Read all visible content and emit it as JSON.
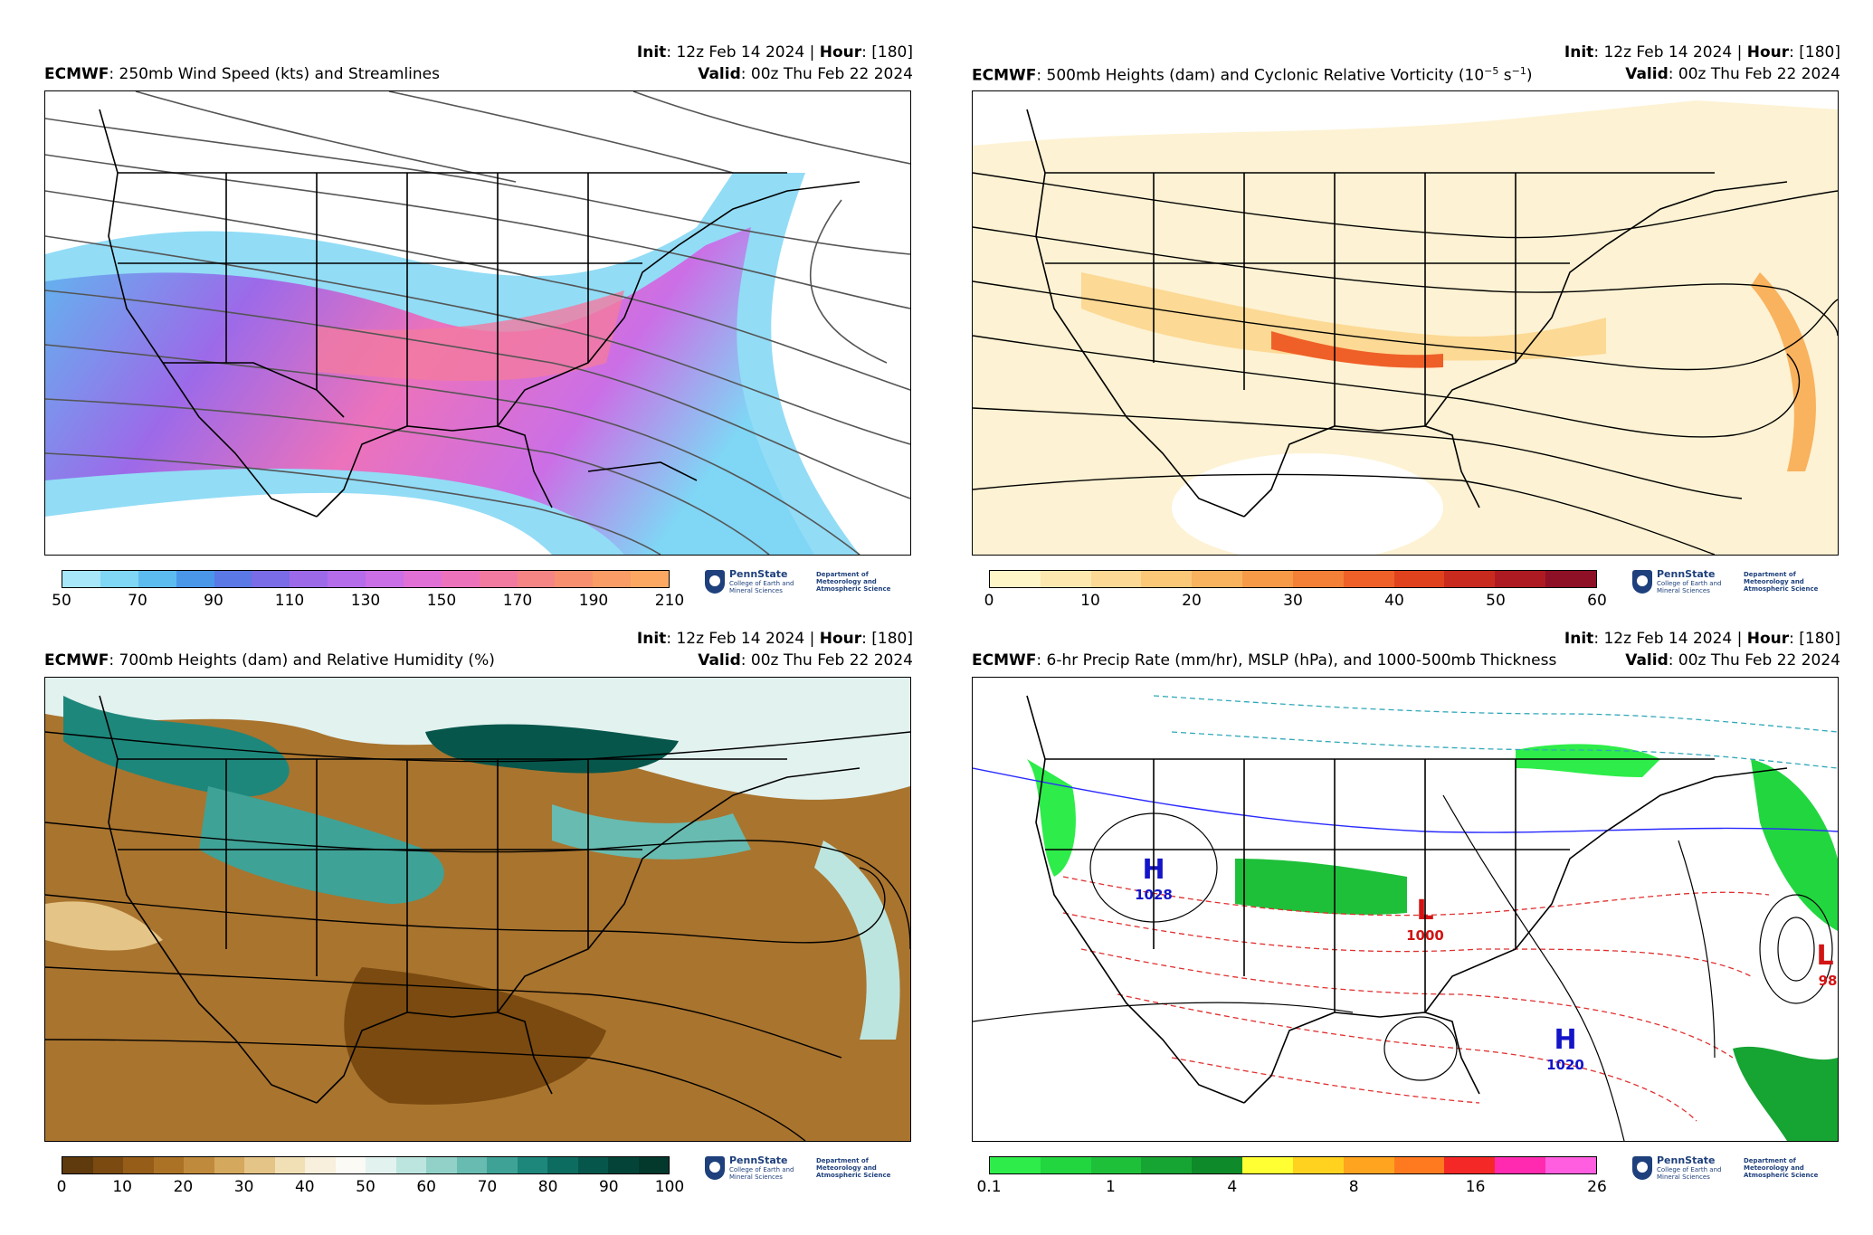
{
  "panels": [
    {
      "model": "ECMWF",
      "field": ": 250mb Wind Speed (kts) and Streamlines",
      "init_label": "Init",
      "init_value": ": 12z Feb 14 2024 | ",
      "hour_label": "Hour",
      "hour_value": ": [180]",
      "valid_label": "Valid",
      "valid_value": ": 00z Thu Feb 22 2024",
      "colorbar": {
        "ticks": [
          "50",
          "70",
          "90",
          "110",
          "130",
          "150",
          "170",
          "190",
          "210"
        ],
        "colors": [
          "#a8e6fa",
          "#7fd6f5",
          "#5cbcef",
          "#4a97ea",
          "#5a78e6",
          "#7a6be6",
          "#9c6ae9",
          "#b56cea",
          "#cb6fe6",
          "#e070d6",
          "#ec72bb",
          "#f27aa0",
          "#f58585",
          "#f89070",
          "#fa9c66",
          "#fca863"
        ]
      },
      "map_background": "#ffffff",
      "map_features": {
        "contour_color": "#555555",
        "style": "streamlines"
      }
    },
    {
      "model": "ECMWF",
      "field": ": 500mb Heights (dam) and Cyclonic Relative Vorticity (10",
      "field_sup": "−5",
      "field_mid": " s",
      "field_sup2": "−1",
      "field_end": ")",
      "init_label": "Init",
      "init_value": ": 12z Feb 14 2024 | ",
      "hour_label": "Hour",
      "hour_value": ": [180]",
      "valid_label": "Valid",
      "valid_value": ": 00z Thu Feb 22 2024",
      "colorbar": {
        "ticks": [
          "0",
          "10",
          "20",
          "30",
          "40",
          "50",
          "60"
        ],
        "colors": [
          "#fff6c8",
          "#fde9b0",
          "#fcd994",
          "#fbc877",
          "#f9b25e",
          "#f79a48",
          "#f47f36",
          "#ef6028",
          "#e0421e",
          "#c92a1e",
          "#ad1a22",
          "#8e1026"
        ]
      },
      "map_background": "#fdf2d3",
      "map_features": {
        "contour_color": "#000000",
        "style": "height contours"
      }
    },
    {
      "model": "ECMWF",
      "field": ": 700mb Heights (dam) and Relative Humidity (%)",
      "init_label": "Init",
      "init_value": ": 12z Feb 14 2024 | ",
      "hour_label": "Hour",
      "hour_value": ": [180]",
      "valid_label": "Valid",
      "valid_value": ": 00z Thu Feb 22 2024",
      "colorbar": {
        "ticks": [
          "0",
          "10",
          "20",
          "30",
          "40",
          "50",
          "60",
          "70",
          "80",
          "90",
          "100"
        ],
        "colors": [
          "#5e3a0c",
          "#7a4a10",
          "#955d18",
          "#ab7226",
          "#c08a3c",
          "#d4a85d",
          "#e4c487",
          "#f1dfb6",
          "#f8efdc",
          "#fbfaf5",
          "#e2f2ef",
          "#bde5df",
          "#92d1c8",
          "#68bbb0",
          "#3fa296",
          "#1e877b",
          "#0d6c60",
          "#07564b",
          "#044438",
          "#03382d"
        ]
      },
      "map_background": "#a9742e",
      "map_features": {
        "contour_color": "#000000",
        "style": "height contours"
      }
    },
    {
      "model": "ECMWF",
      "field": ": 6-hr Precip Rate (mm/hr), MSLP (hPa), and 1000-500mb Thickness",
      "init_label": "Init",
      "init_value": ": 12z Feb 14 2024 | ",
      "hour_label": "Hour",
      "hour_value": ": [180]",
      "valid_label": "Valid",
      "valid_value": ": 00z Thu Feb 22 2024",
      "colorbar": {
        "ticks": [
          "0.1",
          "1",
          "4",
          "8",
          "16",
          "26"
        ],
        "colors": [
          "#2eec4a",
          "#22d640",
          "#1ec03a",
          "#16a432",
          "#0e8a2a",
          "#ffff33",
          "#ffd21f",
          "#ffa41f",
          "#ff7a1f",
          "#f52828",
          "#ff2aaf",
          "#ff5ee0"
        ]
      },
      "map_background": "#ffffff",
      "map_features": {
        "contour_color": "#000000",
        "style": "MSLP isobars and thickness"
      },
      "pressure_centers": [
        {
          "letter": "H",
          "value": "1028",
          "color": "#1414c8"
        },
        {
          "letter": "L",
          "value": "1000",
          "color": "#d21414"
        },
        {
          "letter": "H",
          "value": "1020",
          "color": "#1414c8"
        },
        {
          "letter": "L",
          "value": "98",
          "color": "#d21414"
        }
      ]
    }
  ],
  "logo": {
    "name": "PennState",
    "sub": "College of Earth and Mineral Sciences",
    "dept": "Department of Meteorology and Atmospheric Science",
    "icon": "penn-state-shield-icon"
  }
}
